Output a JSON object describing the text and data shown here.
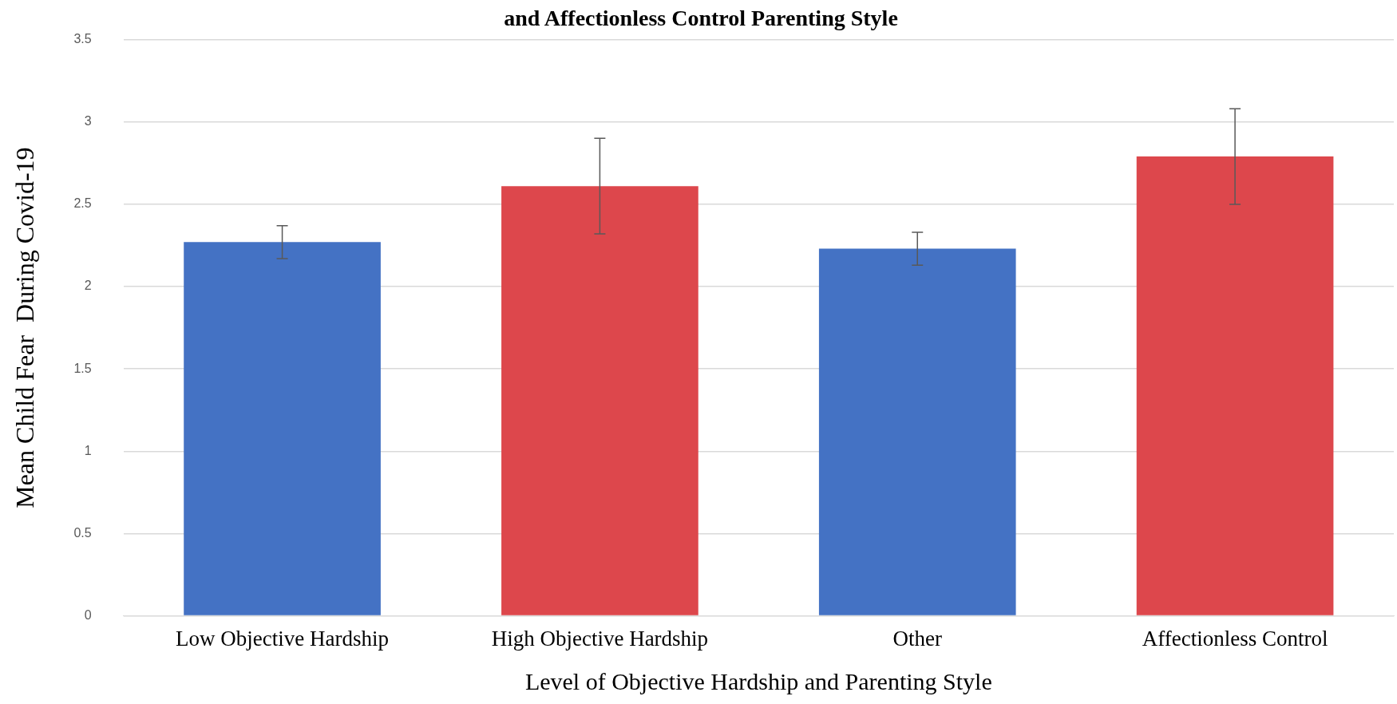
{
  "chart_data": {
    "type": "bar",
    "title": "and Affectionless Control Parenting Style",
    "xlabel": "Level of Objective Hardship and Parenting Style",
    "ylabel": "Mean Child Fear  During Covid-19",
    "categories": [
      "Low Objective Hardship",
      "High Objective Hardship",
      "Other",
      "Affectionless Control"
    ],
    "values": [
      2.27,
      2.61,
      2.23,
      2.79
    ],
    "colors": [
      "#4472c4",
      "#dd474c",
      "#4472c4",
      "#dd474c"
    ],
    "errors": [
      0.1,
      0.29,
      0.1,
      0.29
    ],
    "ylim": [
      0,
      3.5
    ],
    "yticks": [
      0,
      0.5,
      1,
      1.5,
      2,
      2.5,
      3,
      3.5
    ],
    "grid": "y",
    "legend": false
  }
}
